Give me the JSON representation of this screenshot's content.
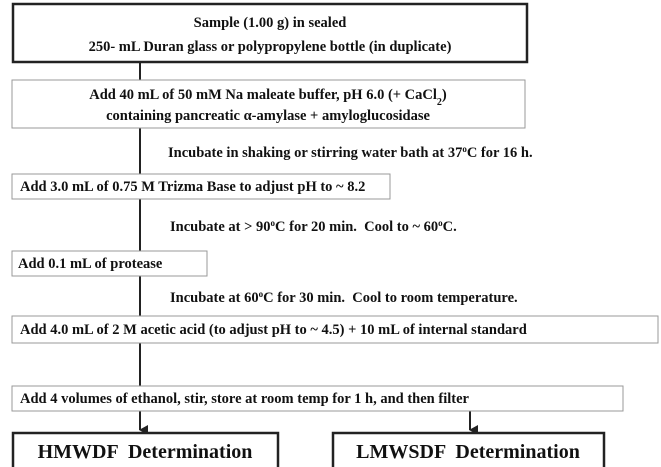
{
  "boxes": [
    {
      "lines": [
        [
          "Sample (1.00 g) in sealed"
        ],
        [
          "250- mL Duran glass or polypropylene bottle (in duplicate)"
        ]
      ]
    },
    {
      "lines": [
        [
          "Add 40 mL of 50 mM Na maleate buffer, pH 6.0 (+ CaCl",
          "2",
          ")"
        ],
        [
          "containing pancreatic α-amylase + amyloglucosidase"
        ]
      ]
    },
    {
      "lines": [
        [
          "Add 3.0 mL of 0.75 M Trizma Base to adjust pH to ~ 8.2"
        ]
      ]
    },
    {
      "lines": [
        [
          "Add 0.1 mL of protease"
        ]
      ]
    },
    {
      "lines": [
        [
          "Add 4.0 mL of 2 M acetic acid (to adjust pH to ~ 4.5) + 10 mL of internal standard"
        ]
      ]
    },
    {
      "lines": [
        [
          "Add 4 volumes of ethanol, stir, store at room temp for 1 h, and then filter"
        ]
      ]
    },
    {
      "lines": [
        [
          "HMWDF  Determination"
        ]
      ]
    },
    {
      "lines": [
        [
          "LMWSDF  Determination"
        ]
      ]
    }
  ],
  "steps": [
    [
      "Incubate in shaking or stirring water bath at 37",
      "o",
      "C for 16 h."
    ],
    [
      "Incubate at > 90",
      "o",
      "C for 20 min.  Cool to ~ 60",
      "o",
      "C."
    ],
    [
      "Incubate at 60",
      "o",
      "C for 30 min.  Cool to room temperature."
    ]
  ]
}
